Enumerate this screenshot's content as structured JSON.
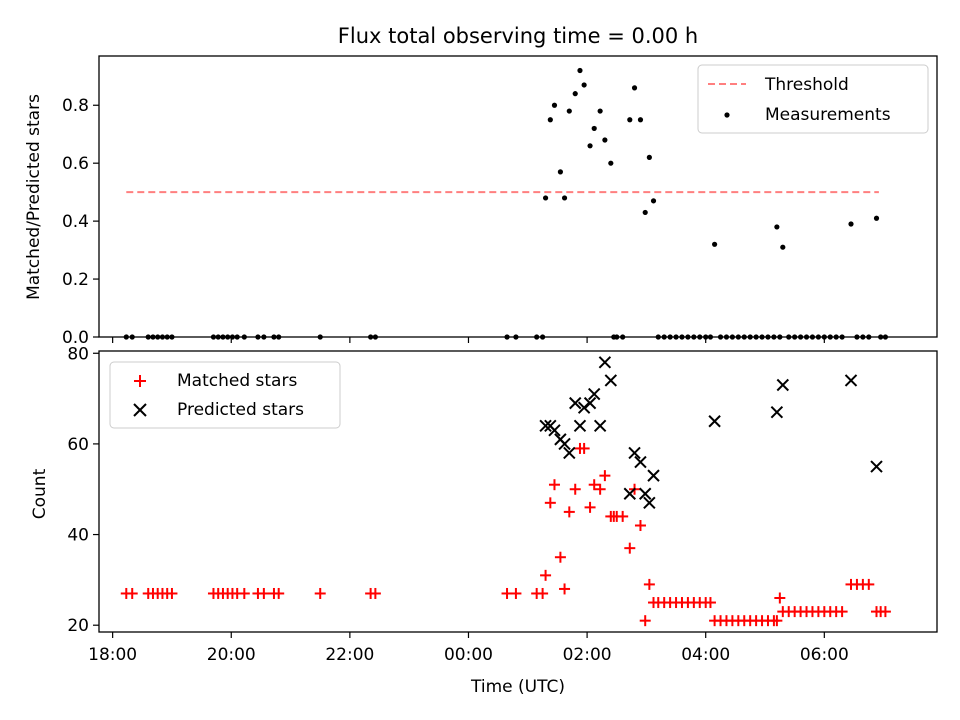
{
  "figure": {
    "title": "Flux total observing time = 0.00 h"
  },
  "chart_data": [
    {
      "type": "scatter",
      "ylabel": "Matched/Predicted stars",
      "xlabel": "",
      "ylim": [
        0,
        0.97
      ],
      "yticks": [
        0.0,
        0.2,
        0.4,
        0.6,
        0.8
      ],
      "ytick_labels": [
        "0.0",
        "0.2",
        "0.4",
        "0.6",
        "0.8"
      ],
      "legend": {
        "position": "top-right",
        "entries": [
          "Threshold",
          "Measurements"
        ]
      },
      "threshold": {
        "name": "Threshold",
        "value": 0.5,
        "x_range": [
          18.23,
          30.92
        ],
        "color": "#ff7f7f"
      },
      "series": [
        {
          "name": "Measurements",
          "color": "#000000",
          "x": [
            18.23,
            18.33,
            18.6,
            18.68,
            18.76,
            18.84,
            18.92,
            19.0,
            19.7,
            19.78,
            19.86,
            19.94,
            20.02,
            20.1,
            20.22,
            20.45,
            20.55,
            20.72,
            20.8,
            21.5,
            22.35,
            22.43,
            24.65,
            24.8,
            25.15,
            25.25,
            25.3,
            25.38,
            25.45,
            25.55,
            25.62,
            25.7,
            25.8,
            25.88,
            25.95,
            26.05,
            26.12,
            26.22,
            26.3,
            26.4,
            26.45,
            26.5,
            26.6,
            26.72,
            26.8,
            26.9,
            26.98,
            27.05,
            27.12,
            27.2,
            27.3,
            27.4,
            27.5,
            27.6,
            27.7,
            27.8,
            27.9,
            28.0,
            28.08,
            28.15,
            28.25,
            28.35,
            28.45,
            28.55,
            28.65,
            28.75,
            28.85,
            28.95,
            29.05,
            29.15,
            29.2,
            29.25,
            29.3,
            29.4,
            29.5,
            29.6,
            29.7,
            29.8,
            29.9,
            30.0,
            30.1,
            30.2,
            30.3,
            30.45,
            30.55,
            30.65,
            30.75,
            30.88,
            30.95,
            31.03
          ],
          "y": [
            0,
            0,
            0,
            0,
            0,
            0,
            0,
            0,
            0,
            0,
            0,
            0,
            0,
            0,
            0,
            0,
            0,
            0,
            0,
            0,
            0,
            0,
            0,
            0,
            0,
            0,
            0.48,
            0.75,
            0.8,
            0.57,
            0.48,
            0.78,
            0.84,
            0.92,
            0.87,
            0.66,
            0.72,
            0.78,
            0.68,
            0.6,
            0,
            0,
            0,
            0.75,
            0.86,
            0.75,
            0.43,
            0.62,
            0.47,
            0,
            0,
            0,
            0,
            0,
            0,
            0,
            0,
            0,
            0,
            0.32,
            0,
            0,
            0,
            0,
            0,
            0,
            0,
            0,
            0,
            0,
            0.38,
            0,
            0.31,
            0,
            0,
            0,
            0,
            0,
            0,
            0,
            0,
            0,
            0,
            0.39,
            0,
            0,
            0,
            0.41,
            0,
            0
          ]
        }
      ]
    },
    {
      "type": "scatter",
      "ylabel": "Count",
      "xlabel": "Time (UTC)",
      "xlim": [
        17.77,
        31.9
      ],
      "ylim": [
        18.5,
        80.5
      ],
      "xticks": [
        18,
        20,
        22,
        24,
        26,
        28,
        30
      ],
      "xtick_labels": [
        "18:00",
        "20:00",
        "22:00",
        "00:00",
        "02:00",
        "04:00",
        "06:00"
      ],
      "yticks": [
        20,
        40,
        60,
        80
      ],
      "ytick_labels": [
        "20",
        "40",
        "60",
        "80"
      ],
      "legend": {
        "position": "top-left",
        "entries": [
          "Matched stars",
          "Predicted stars"
        ]
      },
      "series": [
        {
          "name": "Matched stars",
          "marker": "+",
          "color": "#ff0000",
          "x": [
            18.23,
            18.33,
            18.6,
            18.68,
            18.76,
            18.84,
            18.92,
            19.0,
            19.7,
            19.78,
            19.86,
            19.94,
            20.02,
            20.1,
            20.22,
            20.45,
            20.55,
            20.72,
            20.8,
            21.5,
            22.35,
            22.43,
            24.65,
            24.8,
            25.15,
            25.25,
            25.3,
            25.38,
            25.45,
            25.55,
            25.62,
            25.7,
            25.8,
            25.88,
            25.95,
            26.05,
            26.12,
            26.22,
            26.3,
            26.4,
            26.45,
            26.5,
            26.6,
            26.72,
            26.8,
            26.9,
            26.98,
            27.05,
            27.12,
            27.2,
            27.3,
            27.4,
            27.5,
            27.6,
            27.7,
            27.8,
            27.9,
            28.0,
            28.08,
            28.15,
            28.25,
            28.35,
            28.45,
            28.55,
            28.65,
            28.75,
            28.85,
            28.95,
            29.05,
            29.15,
            29.2,
            29.25,
            29.3,
            29.4,
            29.5,
            29.6,
            29.7,
            29.8,
            29.9,
            30.0,
            30.1,
            30.2,
            30.3,
            30.45,
            30.55,
            30.65,
            30.75,
            30.88,
            30.95,
            31.03
          ],
          "y": [
            27,
            27,
            27,
            27,
            27,
            27,
            27,
            27,
            27,
            27,
            27,
            27,
            27,
            27,
            27,
            27,
            27,
            27,
            27,
            27,
            27,
            27,
            27,
            27,
            27,
            27,
            31,
            47,
            51,
            35,
            28,
            45,
            50,
            59,
            59,
            46,
            51,
            50,
            53,
            44,
            44,
            44,
            44,
            37,
            50,
            42,
            21,
            29,
            25,
            25,
            25,
            25,
            25,
            25,
            25,
            25,
            25,
            25,
            25,
            21,
            21,
            21,
            21,
            21,
            21,
            21,
            21,
            21,
            21,
            21,
            21,
            26,
            23,
            23,
            23,
            23,
            23,
            23,
            23,
            23,
            23,
            23,
            23,
            29,
            29,
            29,
            29,
            23,
            23,
            23
          ]
        },
        {
          "name": "Predicted stars",
          "marker": "x",
          "color": "#000000",
          "x": [
            25.3,
            25.38,
            25.45,
            25.55,
            25.62,
            25.7,
            25.8,
            25.88,
            25.95,
            26.05,
            26.12,
            26.22,
            26.3,
            26.4,
            26.72,
            26.8,
            26.9,
            26.98,
            27.05,
            27.12,
            28.15,
            29.2,
            29.3,
            30.45,
            30.88
          ],
          "y": [
            64,
            64,
            63,
            61,
            60,
            58,
            69,
            64,
            68,
            69,
            71,
            64,
            78,
            74,
            49,
            58,
            56,
            49,
            47,
            53,
            65,
            67,
            73,
            74,
            55
          ]
        }
      ]
    }
  ]
}
